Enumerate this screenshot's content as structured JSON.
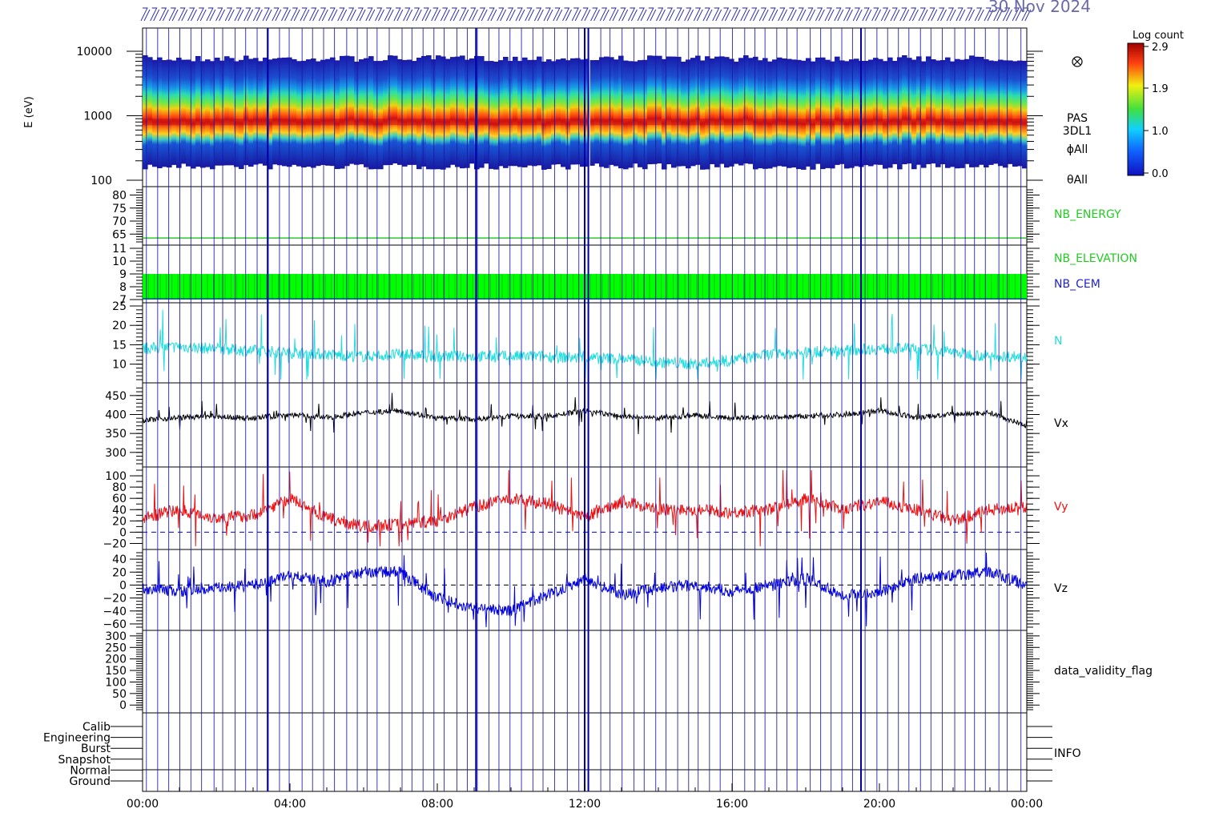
{
  "date_label": "30 Nov 2024",
  "colorbar": {
    "title": "Log count",
    "ticks": [
      "2.9",
      "1.9",
      "1.0",
      "0.0"
    ]
  },
  "time_axis": {
    "start": "00:00",
    "end": "24:00",
    "tick_labels": [
      "00:00",
      "04:00",
      "08:00",
      "12:00",
      "16:00",
      "20:00",
      "00:00"
    ]
  },
  "chart_data": [
    {
      "type": "heatmap",
      "name": "spectrogram",
      "ylabel": "E (eV)",
      "y_scale": "log",
      "ylim": [
        100,
        15000
      ],
      "y_tick_labels": [
        "10000",
        "1000",
        "100"
      ],
      "right_labels": [
        "PAS",
        "3DL1",
        "ϕAll",
        "θAll"
      ],
      "peak_energy_eV": 800,
      "clim": [
        0.0,
        2.9
      ]
    },
    {
      "type": "line",
      "name": "energy",
      "right_label": "NB_ENERGY",
      "ylim": [
        62,
        82
      ],
      "y_tick_labels": [
        "80",
        "75",
        "70",
        "65"
      ],
      "value": 63.5,
      "color": "#00c000"
    },
    {
      "type": "bar",
      "name": "elevation-cem",
      "right_labels": [
        "NB_ELEVATION",
        "NB_CEM"
      ],
      "ylim": [
        7,
        11
      ],
      "y_tick_labels": [
        "11",
        "10",
        "9",
        "8",
        "7"
      ],
      "band": [
        7,
        9
      ],
      "colors": [
        "#00ff00",
        "#0000cc"
      ]
    },
    {
      "type": "line",
      "name": "density",
      "right_label": "N",
      "ylim": [
        6,
        25
      ],
      "y_tick_labels": [
        "25",
        "20",
        "15",
        "10"
      ],
      "color": "#22dddd",
      "x": [
        0,
        1,
        2,
        3,
        4,
        5,
        6,
        7,
        8,
        9,
        10,
        11,
        12,
        13,
        14,
        15,
        16,
        17,
        18,
        19,
        20,
        21,
        22,
        23,
        24
      ],
      "values": [
        14,
        14.5,
        14,
        13.5,
        13,
        12.5,
        12,
        12.5,
        12,
        12,
        12,
        12,
        11.5,
        11.5,
        10.5,
        10,
        11,
        12.5,
        13,
        13.5,
        14,
        14,
        13,
        12,
        12
      ]
    },
    {
      "type": "line",
      "name": "vx",
      "right_label": "Vx",
      "ylim": [
        270,
        475
      ],
      "y_tick_labels": [
        "450",
        "400",
        "350",
        "300"
      ],
      "color": "#000000",
      "x": [
        0,
        1,
        2,
        3,
        4,
        5,
        6,
        7,
        8,
        9,
        10,
        11,
        12,
        13,
        14,
        15,
        16,
        17,
        18,
        19,
        20,
        21,
        22,
        23,
        24
      ],
      "values": [
        385,
        392,
        395,
        390,
        400,
        392,
        405,
        410,
        390,
        388,
        395,
        395,
        410,
        395,
        390,
        398,
        390,
        392,
        395,
        400,
        410,
        392,
        400,
        405,
        370
      ]
    },
    {
      "type": "line",
      "name": "vy",
      "right_label": "Vy",
      "ylim": [
        -25,
        110
      ],
      "y_tick_labels": [
        "100",
        "80",
        "60",
        "40",
        "20",
        "0",
        "−20"
      ],
      "color": "#ee1111",
      "x": [
        0,
        1,
        2,
        3,
        4,
        5,
        6,
        7,
        8,
        9,
        10,
        11,
        12,
        13,
        14,
        15,
        16,
        17,
        18,
        19,
        20,
        21,
        22,
        23,
        24
      ],
      "values": [
        25,
        40,
        25,
        30,
        60,
        25,
        10,
        15,
        20,
        45,
        60,
        50,
        25,
        55,
        40,
        40,
        35,
        40,
        60,
        40,
        55,
        40,
        20,
        40,
        45
      ]
    },
    {
      "type": "line",
      "name": "vz",
      "right_label": "Vz",
      "ylim": [
        -65,
        50
      ],
      "y_tick_labels": [
        "40",
        "20",
        "0",
        "−20",
        "−40",
        "−60"
      ],
      "color": "#0000dd",
      "x": [
        0,
        1,
        2,
        3,
        4,
        5,
        6,
        7,
        8,
        9,
        10,
        11,
        12,
        13,
        14,
        15,
        16,
        17,
        18,
        19,
        20,
        21,
        22,
        23,
        24
      ],
      "values": [
        -5,
        -10,
        -5,
        0,
        15,
        5,
        20,
        20,
        -20,
        -35,
        -40,
        -15,
        10,
        -15,
        -5,
        0,
        -10,
        0,
        10,
        -15,
        -10,
        10,
        15,
        20,
        0
      ]
    },
    {
      "type": "line",
      "name": "validity",
      "right_label": "data_validity_flag",
      "ylim": [
        -20,
        310
      ],
      "y_tick_labels": [
        "300",
        "250",
        "200",
        "150",
        "100",
        "50",
        "0"
      ]
    },
    {
      "type": "table",
      "name": "info",
      "right_label": "INFO",
      "categories": [
        "Calib",
        "Engineering",
        "Burst",
        "Snapshot",
        "Normal",
        "Ground"
      ]
    }
  ]
}
